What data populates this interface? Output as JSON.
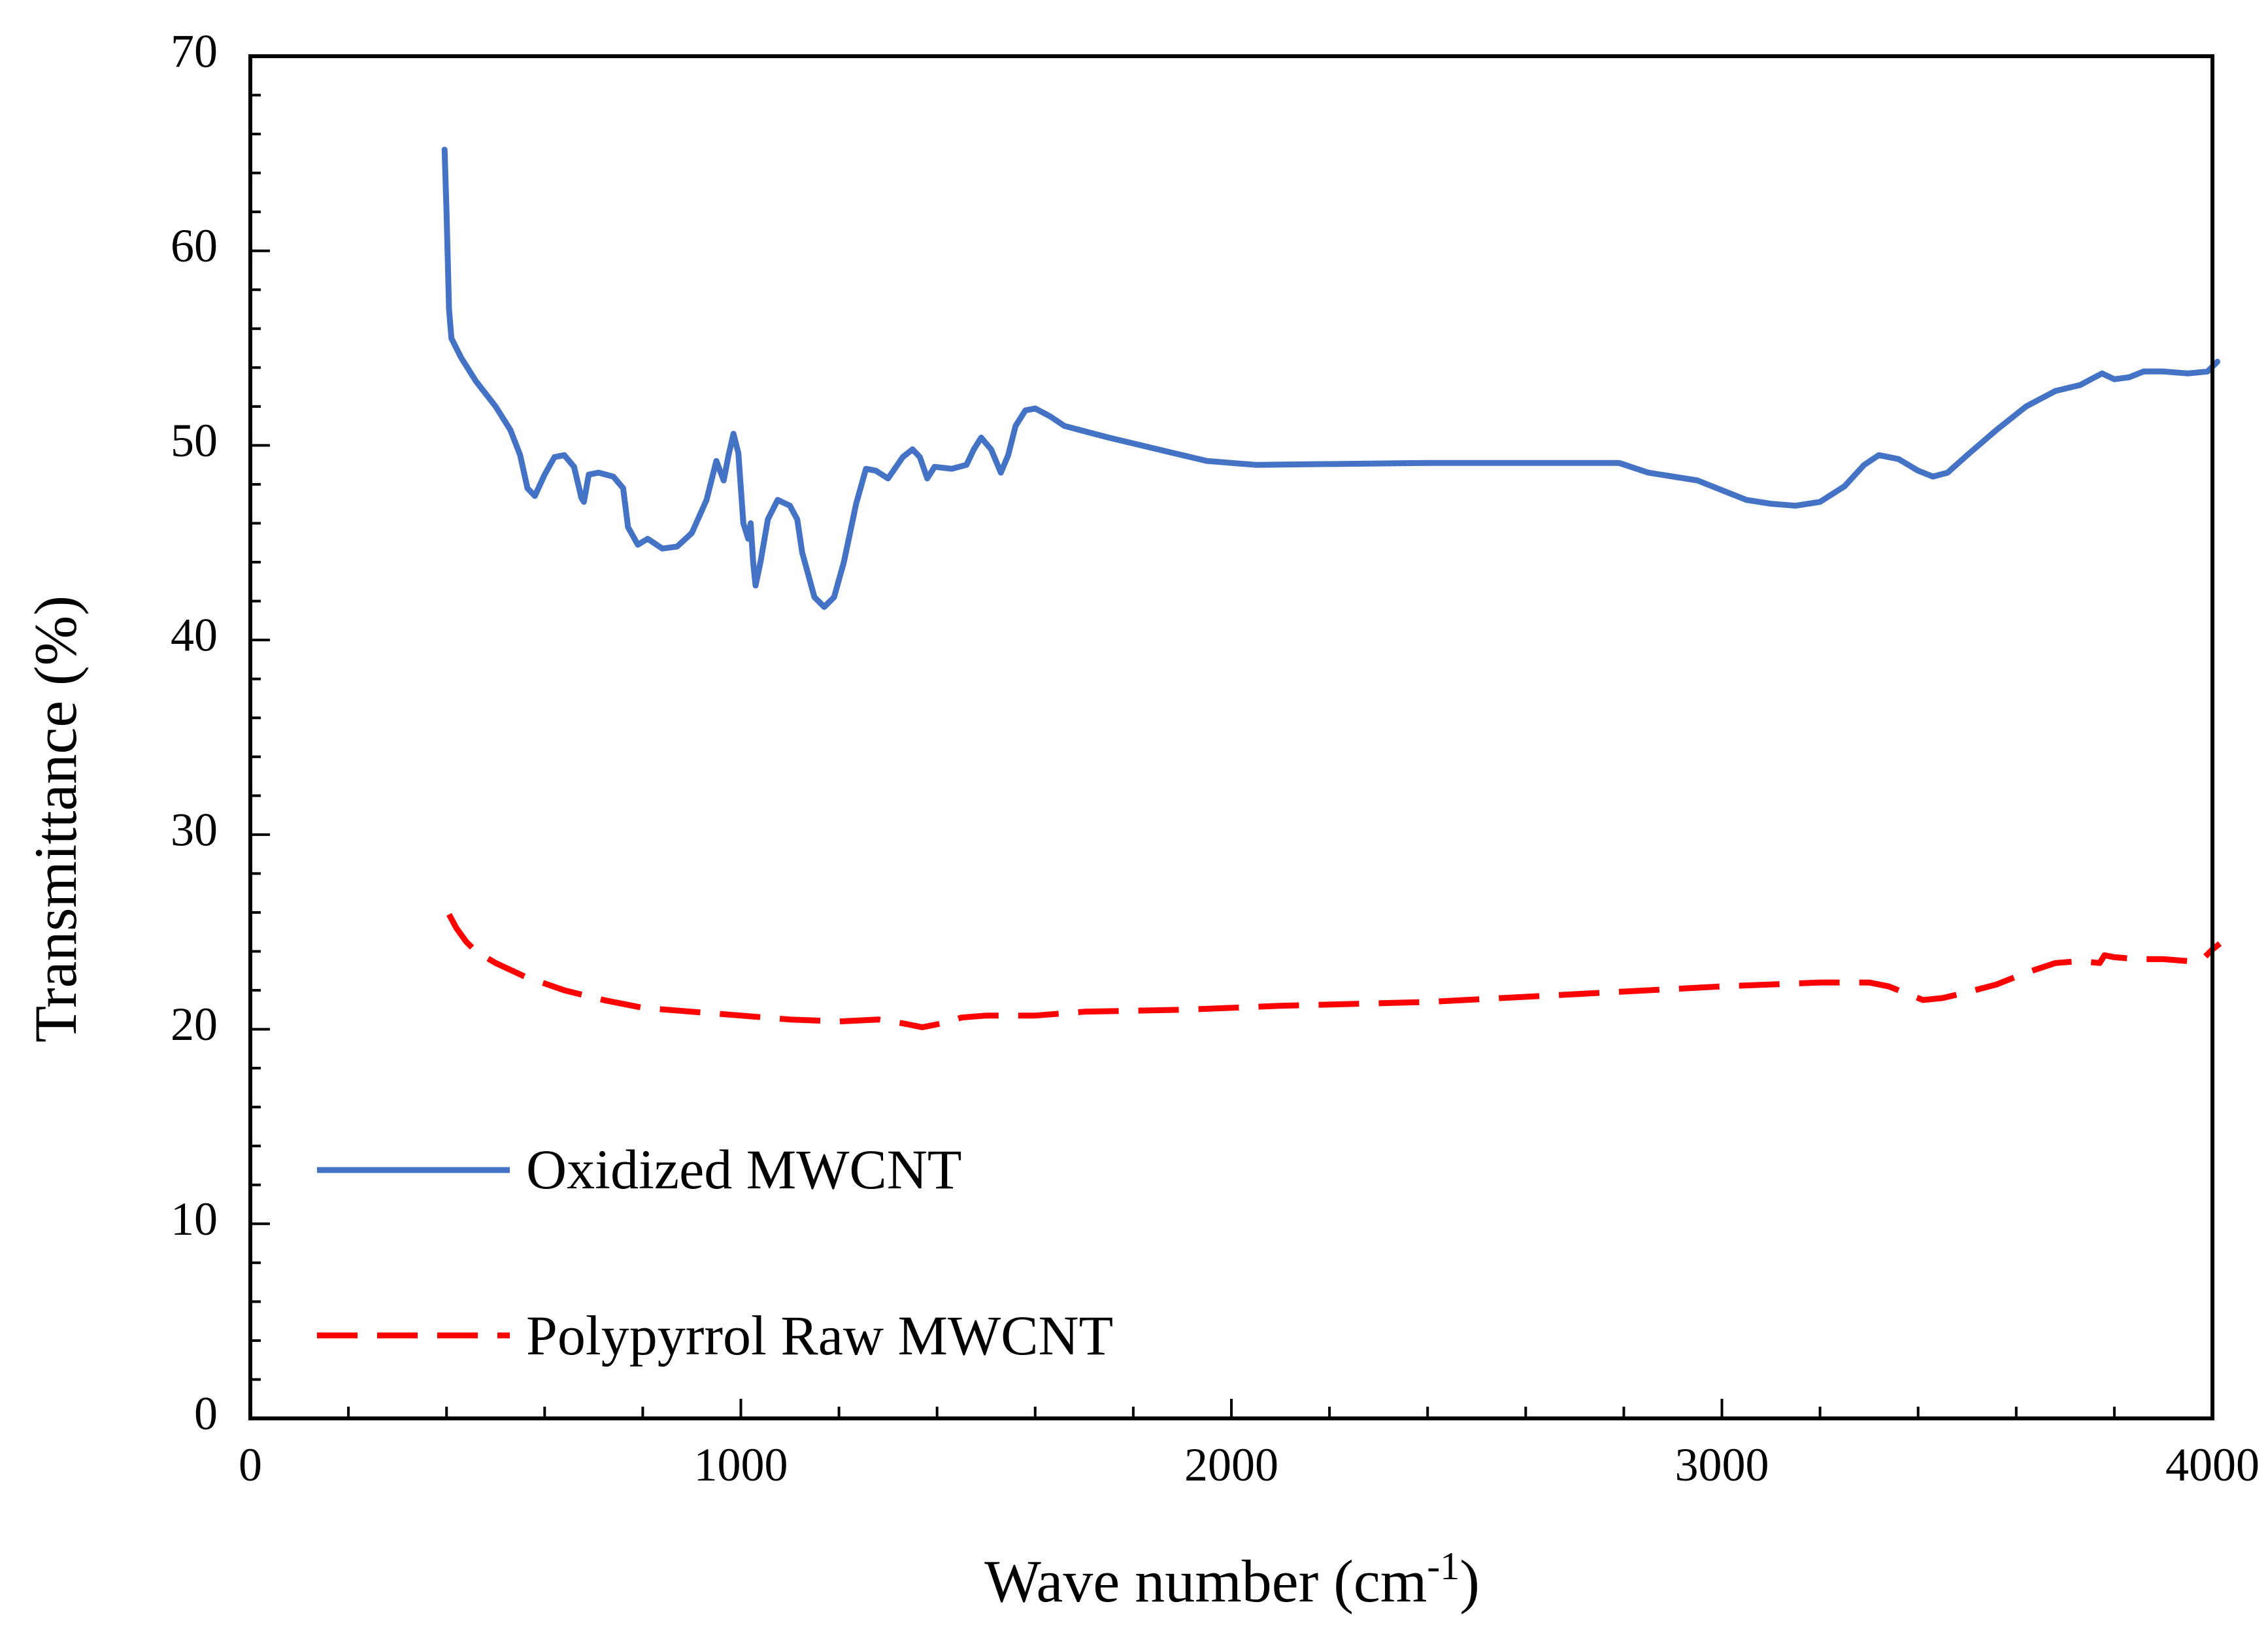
{
  "chart_data": {
    "type": "line",
    "title": "",
    "xlabel": "Wave number (cm",
    "xlabel_sup": "-1",
    "xlabel_close": ")",
    "ylabel": "Transmittance (%)",
    "xlim": [
      0,
      4000
    ],
    "ylim": [
      0,
      70
    ],
    "xticks": [
      0,
      1000,
      2000,
      3000,
      4000
    ],
    "xtick_labels": [
      "0",
      "1000",
      "2000",
      "3000",
      "4000"
    ],
    "yticks": [
      0,
      10,
      20,
      30,
      40,
      50,
      60,
      70
    ],
    "ytick_labels": [
      "0",
      "10",
      "20",
      "30",
      "40",
      "50",
      "60",
      "70"
    ],
    "x_minor_step": 200,
    "y_minor_step": 2,
    "grid": false,
    "legend_position": "bottom-left",
    "series": [
      {
        "name": "Oxidized MWCNT",
        "color": "#4472C4",
        "style": "solid",
        "points": [
          [
            396,
            65.2
          ],
          [
            400,
            62
          ],
          [
            405,
            57
          ],
          [
            410,
            55.5
          ],
          [
            430,
            54.5
          ],
          [
            460,
            53.3
          ],
          [
            500,
            52
          ],
          [
            530,
            50.8
          ],
          [
            550,
            49.5
          ],
          [
            565,
            47.8
          ],
          [
            580,
            47.4
          ],
          [
            600,
            48.5
          ],
          [
            620,
            49.4
          ],
          [
            640,
            49.5
          ],
          [
            660,
            48.9
          ],
          [
            675,
            47.3
          ],
          [
            680,
            47.1
          ],
          [
            690,
            48.5
          ],
          [
            710,
            48.6
          ],
          [
            740,
            48.4
          ],
          [
            760,
            47.8
          ],
          [
            770,
            45.8
          ],
          [
            790,
            44.9
          ],
          [
            810,
            45.2
          ],
          [
            840,
            44.7
          ],
          [
            870,
            44.8
          ],
          [
            900,
            45.5
          ],
          [
            930,
            47.2
          ],
          [
            950,
            49.2
          ],
          [
            965,
            48.2
          ],
          [
            975,
            49.5
          ],
          [
            985,
            50.6
          ],
          [
            995,
            49.6
          ],
          [
            1005,
            46
          ],
          [
            1015,
            45.2
          ],
          [
            1020,
            46
          ],
          [
            1025,
            44
          ],
          [
            1030,
            42.8
          ],
          [
            1040,
            44
          ],
          [
            1055,
            46.2
          ],
          [
            1075,
            47.2
          ],
          [
            1100,
            46.9
          ],
          [
            1115,
            46.2
          ],
          [
            1125,
            44.5
          ],
          [
            1150,
            42.2
          ],
          [
            1170,
            41.7
          ],
          [
            1190,
            42.2
          ],
          [
            1210,
            44
          ],
          [
            1235,
            47
          ],
          [
            1255,
            48.8
          ],
          [
            1275,
            48.7
          ],
          [
            1300,
            48.3
          ],
          [
            1330,
            49.4
          ],
          [
            1350,
            49.8
          ],
          [
            1365,
            49.4
          ],
          [
            1380,
            48.3
          ],
          [
            1395,
            48.9
          ],
          [
            1430,
            48.8
          ],
          [
            1460,
            49
          ],
          [
            1475,
            49.8
          ],
          [
            1490,
            50.4
          ],
          [
            1510,
            49.8
          ],
          [
            1530,
            48.6
          ],
          [
            1545,
            49.5
          ],
          [
            1560,
            51
          ],
          [
            1580,
            51.8
          ],
          [
            1600,
            51.9
          ],
          [
            1630,
            51.5
          ],
          [
            1660,
            51
          ],
          [
            1750,
            50.4
          ],
          [
            1850,
            49.8
          ],
          [
            1950,
            49.2
          ],
          [
            2050,
            49
          ],
          [
            2400,
            49.1
          ],
          [
            2790,
            49.1
          ],
          [
            2850,
            48.6
          ],
          [
            2950,
            48.2
          ],
          [
            3000,
            47.7
          ],
          [
            3050,
            47.2
          ],
          [
            3100,
            47
          ],
          [
            3150,
            46.9
          ],
          [
            3200,
            47.1
          ],
          [
            3250,
            47.9
          ],
          [
            3290,
            49
          ],
          [
            3320,
            49.5
          ],
          [
            3360,
            49.3
          ],
          [
            3400,
            48.7
          ],
          [
            3430,
            48.4
          ],
          [
            3460,
            48.6
          ],
          [
            3500,
            49.5
          ],
          [
            3560,
            50.8
          ],
          [
            3620,
            52
          ],
          [
            3680,
            52.8
          ],
          [
            3730,
            53.1
          ],
          [
            3760,
            53.5
          ],
          [
            3775,
            53.7
          ],
          [
            3800,
            53.4
          ],
          [
            3830,
            53.5
          ],
          [
            3860,
            53.8
          ],
          [
            3900,
            53.8
          ],
          [
            3950,
            53.7
          ],
          [
            3990,
            53.8
          ],
          [
            4010,
            54.3
          ]
        ]
      },
      {
        "name": "Polypyrrol Raw MWCNT",
        "color": "#FF0000",
        "style": "dashed",
        "points": [
          [
            405,
            25.9
          ],
          [
            420,
            25.2
          ],
          [
            440,
            24.5
          ],
          [
            460,
            24
          ],
          [
            500,
            23.4
          ],
          [
            560,
            22.7
          ],
          [
            640,
            22
          ],
          [
            720,
            21.5
          ],
          [
            800,
            21.1
          ],
          [
            900,
            20.9
          ],
          [
            1000,
            20.7
          ],
          [
            1100,
            20.5
          ],
          [
            1200,
            20.4
          ],
          [
            1280,
            20.5
          ],
          [
            1330,
            20.3
          ],
          [
            1370,
            20.1
          ],
          [
            1410,
            20.3
          ],
          [
            1450,
            20.6
          ],
          [
            1500,
            20.7
          ],
          [
            1600,
            20.7
          ],
          [
            1700,
            20.9
          ],
          [
            1900,
            21
          ],
          [
            2100,
            21.2
          ],
          [
            2400,
            21.4
          ],
          [
            2700,
            21.8
          ],
          [
            3000,
            22.2
          ],
          [
            3200,
            22.4
          ],
          [
            3300,
            22.4
          ],
          [
            3340,
            22.2
          ],
          [
            3380,
            21.8
          ],
          [
            3410,
            21.5
          ],
          [
            3450,
            21.6
          ],
          [
            3500,
            21.9
          ],
          [
            3560,
            22.3
          ],
          [
            3620,
            22.9
          ],
          [
            3680,
            23.4
          ],
          [
            3730,
            23.5
          ],
          [
            3770,
            23.4
          ],
          [
            3780,
            23.8
          ],
          [
            3800,
            23.7
          ],
          [
            3850,
            23.6
          ],
          [
            3900,
            23.6
          ],
          [
            3950,
            23.5
          ],
          [
            3980,
            23.6
          ],
          [
            4000,
            24.1
          ],
          [
            4015,
            24.4
          ]
        ]
      }
    ]
  }
}
